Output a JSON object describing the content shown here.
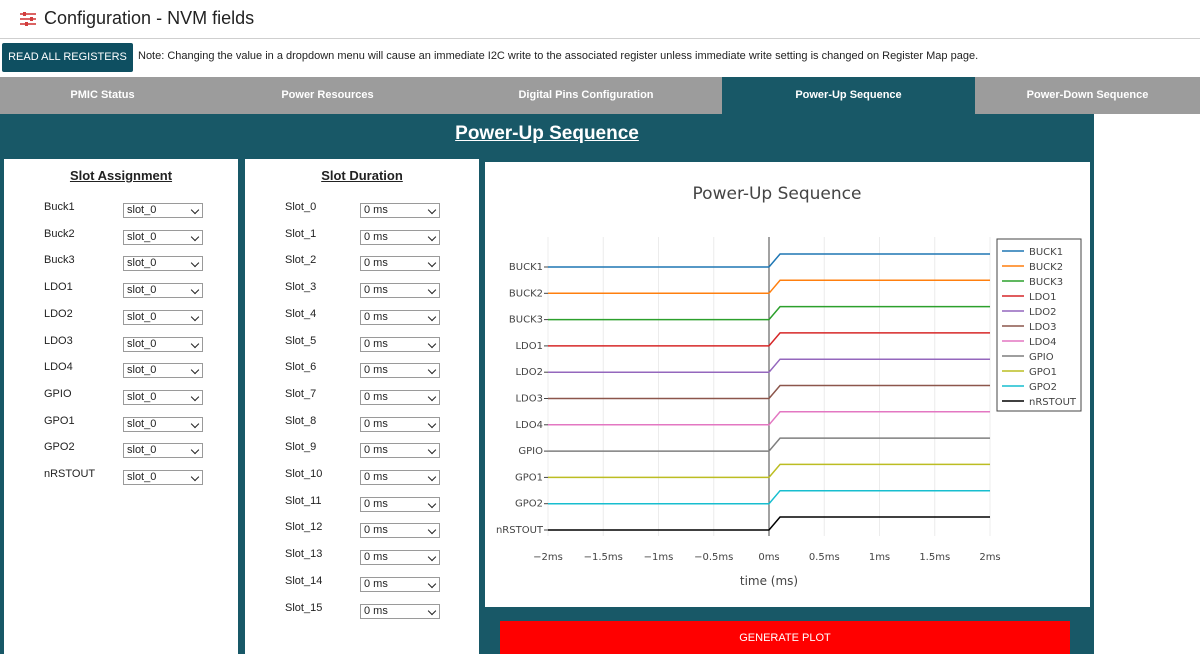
{
  "header": {
    "title": "Configuration - NVM fields"
  },
  "toolbar": {
    "read_all_label": "READ ALL REGISTERS",
    "note": "Note: Changing the value in a dropdown menu will cause an immediate I2C write to the associated register unless immediate write setting is changed on Register Map page."
  },
  "tabs": [
    {
      "label": "PMIC Status",
      "active": false
    },
    {
      "label": "Power Resources",
      "active": false
    },
    {
      "label": "Digital Pins Configuration",
      "active": false
    },
    {
      "label": "Power-Up Sequence",
      "active": true
    },
    {
      "label": "Power-Down Sequence",
      "active": false
    }
  ],
  "panel": {
    "title": "Power-Up Sequence"
  },
  "slot_assignment": {
    "heading": "Slot Assignment",
    "rows": [
      {
        "label": "Buck1",
        "value": "slot_0"
      },
      {
        "label": "Buck2",
        "value": "slot_0"
      },
      {
        "label": "Buck3",
        "value": "slot_0"
      },
      {
        "label": "LDO1",
        "value": "slot_0"
      },
      {
        "label": "LDO2",
        "value": "slot_0"
      },
      {
        "label": "LDO3",
        "value": "slot_0"
      },
      {
        "label": "LDO4",
        "value": "slot_0"
      },
      {
        "label": "GPIO",
        "value": "slot_0"
      },
      {
        "label": "GPO1",
        "value": "slot_0"
      },
      {
        "label": "GPO2",
        "value": "slot_0"
      },
      {
        "label": "nRSTOUT",
        "value": "slot_0"
      }
    ]
  },
  "slot_duration": {
    "heading": "Slot Duration",
    "rows": [
      {
        "label": "Slot_0",
        "value": "0 ms"
      },
      {
        "label": "Slot_1",
        "value": "0 ms"
      },
      {
        "label": "Slot_2",
        "value": "0 ms"
      },
      {
        "label": "Slot_3",
        "value": "0 ms"
      },
      {
        "label": "Slot_4",
        "value": "0 ms"
      },
      {
        "label": "Slot_5",
        "value": "0 ms"
      },
      {
        "label": "Slot_6",
        "value": "0 ms"
      },
      {
        "label": "Slot_7",
        "value": "0 ms"
      },
      {
        "label": "Slot_8",
        "value": "0 ms"
      },
      {
        "label": "Slot_9",
        "value": "0 ms"
      },
      {
        "label": "Slot_10",
        "value": "0 ms"
      },
      {
        "label": "Slot_11",
        "value": "0 ms"
      },
      {
        "label": "Slot_12",
        "value": "0 ms"
      },
      {
        "label": "Slot_13",
        "value": "0 ms"
      },
      {
        "label": "Slot_14",
        "value": "0 ms"
      },
      {
        "label": "Slot_15",
        "value": "0 ms"
      }
    ]
  },
  "chart_data": {
    "type": "line",
    "title": "Power-Up Sequence",
    "xlabel": "time (ms)",
    "ylabel": "",
    "xlim": [
      -2,
      2
    ],
    "xticks": [
      -2,
      -1.5,
      -1,
      -0.5,
      0,
      0.5,
      1,
      1.5,
      2
    ],
    "xtick_labels": [
      "−2ms",
      "−1.5ms",
      "−1ms",
      "−0.5ms",
      "0ms",
      "0.5ms",
      "1ms",
      "1.5ms",
      "2ms"
    ],
    "grid": true,
    "legend": "right",
    "x": [
      -2,
      0,
      0.1,
      2
    ],
    "series": [
      {
        "name": "BUCK1",
        "color": "#1f77b4",
        "values": [
          0,
          0,
          1,
          1
        ]
      },
      {
        "name": "BUCK2",
        "color": "#ff7f0e",
        "values": [
          0,
          0,
          1,
          1
        ]
      },
      {
        "name": "BUCK3",
        "color": "#2ca02c",
        "values": [
          0,
          0,
          1,
          1
        ]
      },
      {
        "name": "LDO1",
        "color": "#d62728",
        "values": [
          0,
          0,
          1,
          1
        ]
      },
      {
        "name": "LDO2",
        "color": "#9467bd",
        "values": [
          0,
          0,
          1,
          1
        ]
      },
      {
        "name": "LDO3",
        "color": "#8c564b",
        "values": [
          0,
          0,
          1,
          1
        ]
      },
      {
        "name": "LDO4",
        "color": "#e377c2",
        "values": [
          0,
          0,
          1,
          1
        ]
      },
      {
        "name": "GPIO",
        "color": "#7f7f7f",
        "values": [
          0,
          0,
          1,
          1
        ]
      },
      {
        "name": "GPO1",
        "color": "#bcbd22",
        "values": [
          0,
          0,
          1,
          1
        ]
      },
      {
        "name": "GPO2",
        "color": "#17becf",
        "values": [
          0,
          0,
          1,
          1
        ]
      },
      {
        "name": "nRSTOUT",
        "color": "#000000",
        "values": [
          0,
          0,
          1,
          1
        ]
      }
    ]
  },
  "generate_label": "GENERATE PLOT"
}
